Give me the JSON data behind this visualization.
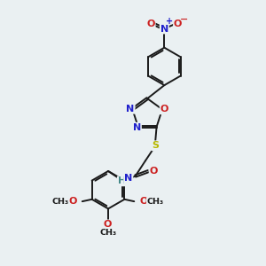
{
  "background_color": "#eaf0f2",
  "figsize": [
    3.0,
    3.0
  ],
  "dpi": 100,
  "bond_color": "#1a1a1a",
  "bond_width": 1.4,
  "N_color": "#2020cc",
  "O_color": "#cc2020",
  "S_color": "#b8b800",
  "H_color": "#448888",
  "font_size": 8.0,
  "font_size_small": 6.8,
  "xlim": [
    0,
    10
  ],
  "ylim": [
    0,
    10
  ]
}
